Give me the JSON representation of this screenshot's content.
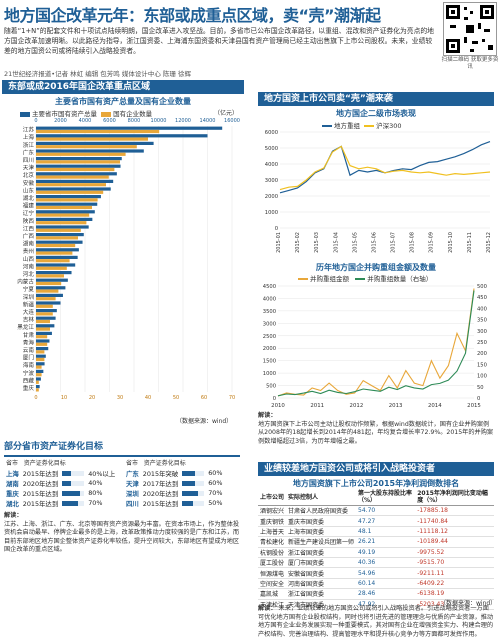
{
  "header": {
    "title": "地方国企改革元年：东部或成重点区域，卖“壳”潮渐起",
    "lead": "随着“1+N”的配套文件和十项试点陆续明朗，国企改革进入攻坚战。目前，多省市已公布国企改革路径，以重组、混改和资产证券化为亮点的地方国企改革加速明晰。以此路径为指导，浙江国资委、上海浦东国资委和天津县国有资产管理局已经主动出售旗下上市公司股权。未来，业绩较差的地方国资公司或将陆续引入战略投资者。",
    "byline": "21世纪经济报道•记者 林虹 编辑 包芳鸣 媒体设计中心 陈珊 徐辉",
    "qr_caption": "扫描二维码 获取更多资讯"
  },
  "left_panel": {
    "section_title": "东部或成2016年国企改革重点区域",
    "chart_title": "主要省市国有资产总量及国有企业数量",
    "unit": "（亿元）",
    "source": "（数据来源：wind）"
  },
  "chart_data": [
    {
      "type": "bar",
      "title": "主要省市国有资产总量及国有企业数量",
      "series": [
        {
          "name": "主要省市国有资产总量",
          "color": "#1f5f96"
        },
        {
          "name": "国有企业数量",
          "color": "#e8a73a"
        }
      ],
      "categories": [
        "江苏",
        "上海",
        "浙江",
        "广东",
        "四川",
        "天津",
        "北京",
        "安徽",
        "山东",
        "湖北",
        "福建",
        "辽宁",
        "陕西",
        "江西",
        "广西",
        "湖南",
        "贵州",
        "山西",
        "河南",
        "河北",
        "内蒙古",
        "宁夏",
        "深圳",
        "新疆",
        "大连",
        "吉林",
        "黑龙江",
        "甘肃",
        "青海",
        "云南",
        "厦门",
        "海南",
        "宁波",
        "西藏",
        "重庆"
      ],
      "values_total": [
        15200,
        14000,
        9600,
        8800,
        7000,
        6900,
        6600,
        6300,
        6100,
        5300,
        5000,
        4800,
        4600,
        4300,
        3900,
        3800,
        3500,
        3400,
        3200,
        2900,
        2600,
        2400,
        2200,
        2000,
        1700,
        1600,
        1500,
        1300,
        1100,
        1000,
        800,
        700,
        600,
        400,
        300
      ],
      "values_count": [
        44,
        40,
        36,
        32,
        30,
        28,
        26,
        25,
        24,
        22,
        20,
        19,
        18,
        16,
        15,
        14,
        13,
        12,
        11,
        10,
        9,
        8,
        7,
        6,
        6,
        5,
        5,
        4,
        4,
        3,
        3,
        2,
        2,
        1,
        1
      ],
      "xticks_total": [
        "0",
        "2000",
        "4000",
        "6000",
        "8000",
        "10000",
        "12000",
        "14000",
        "16000"
      ],
      "xticks_count": [
        "0",
        "10",
        "20",
        "30",
        "40",
        "50",
        "60",
        "70"
      ]
    },
    {
      "type": "line",
      "title": "地方国企二级市场表现",
      "series": [
        {
          "name": "地方重组",
          "color": "#1f5f96",
          "values": [
            2200,
            2350,
            2500,
            2900,
            3450,
            3700,
            4800,
            5100,
            3300,
            3600,
            3500,
            3600,
            3450,
            3600,
            3700,
            3650,
            3900,
            4100,
            4150,
            4300,
            4450,
            4650,
            4900,
            5200,
            5400
          ]
        },
        {
          "name": "沪深300",
          "color": "#f0c020",
          "values": [
            2400,
            2550,
            2600,
            3000,
            3500,
            3750,
            4750,
            5100,
            3900,
            3700,
            3800,
            3700,
            3450,
            3550,
            3600,
            3500,
            3450,
            3500,
            3400,
            3300,
            3400,
            3350,
            3400,
            3450,
            3500
          ]
        }
      ],
      "xticks": [
        "2015-01",
        "2015-02",
        "2015-03",
        "2015-04",
        "2015-05",
        "2015-06",
        "2015-07",
        "2015-08",
        "2015-09",
        "2015-10",
        "2015-11",
        "2015-12"
      ],
      "yticks": [
        "0",
        "1000",
        "2000",
        "3000",
        "4000",
        "5000",
        "6000"
      ]
    },
    {
      "type": "line",
      "title": "历年地方国企并购重组金额及数量",
      "series": [
        {
          "name": "并购重组金额",
          "color": "#e8a73a"
        },
        {
          "name": "并购重组数量（右轴）",
          "color": "#2e8b57"
        }
      ],
      "years": [
        "2010",
        "2011",
        "2012",
        "2013",
        "2014",
        "2015"
      ],
      "amount": [
        80,
        200,
        150,
        120,
        400,
        300,
        600,
        300,
        150,
        200,
        700,
        500,
        300,
        900,
        400,
        1100,
        600,
        500,
        1500,
        800,
        1300,
        2600,
        1900,
        4400
      ],
      "count": [
        10,
        18,
        15,
        22,
        30,
        20,
        35,
        25,
        20,
        28,
        40,
        35,
        30,
        48,
        38,
        55,
        45,
        40,
        60,
        65,
        80,
        120,
        200,
        480
      ],
      "yticks_left": [
        "0",
        "500",
        "1000",
        "1500",
        "2000",
        "2500",
        "3000",
        "3500",
        "4000",
        "4500"
      ],
      "yticks_right": [
        "0",
        "50",
        "100",
        "150",
        "200",
        "250",
        "300",
        "350",
        "400",
        "450",
        "500"
      ]
    }
  ],
  "right_panel": {
    "section_title": "地方国资上市公司卖“壳”潮来袭",
    "chart2_title": "地方国企二级市场表现",
    "chart3_title": "历年地方国企并购重组金额及数量",
    "note_label": "解读：",
    "note": "地方国资旗下上市公司主动让股权动作频繁，根据wind数据统计，国有企业并购案例从2008年的18起增长到2014年的481起，年均复合增长率72.9%。2015年的并购案例数增幅超过3倍，为历年增幅之最。"
  },
  "targets": {
    "section_title": "部分省市资产证券化目标",
    "left_header": [
      "省市",
      "资产证券化目标"
    ],
    "right_header": [
      "省市",
      "资产证券化目标"
    ],
    "rows_left": [
      {
        "city": "上海",
        "year": "2015年达到",
        "pct": "40%以上",
        "fill": 0.4
      },
      {
        "city": "湖南",
        "year": "2020年达到",
        "pct": "40%",
        "fill": 0.4
      },
      {
        "city": "重庆",
        "year": "2015年达到",
        "pct": "80%",
        "fill": 0.8
      },
      {
        "city": "湖北",
        "year": "2015年达到",
        "pct": "70%",
        "fill": 0.7
      }
    ],
    "rows_right": [
      {
        "city": "广东",
        "year": "2015年突破",
        "pct": "60%",
        "fill": 0.6
      },
      {
        "city": "天津",
        "year": "2017年达到",
        "pct": "60%",
        "fill": 0.6
      },
      {
        "city": "深圳",
        "year": "2020年达到",
        "pct": "70%",
        "fill": 0.7
      },
      {
        "city": "四川",
        "year": "2015年达到",
        "pct": "50%",
        "fill": 0.5
      }
    ],
    "note_label": "解读：",
    "note": "江苏、上海、浙江、广东、北京等国有资产资源最为丰富。在资本市场上，作为整体投资机会启动最早、停牌企业最多的是上海，改革政策推动力度较强的是广东和江苏，而目前东部地区地方国企整体资产证券化率较低，提升空间较大，东部地区有望成为地区国企改革的重点区域。"
  },
  "ranking": {
    "section_title": "业绩较差地方国资公司或将引入战略投资者",
    "subtitle": "地方国资旗下上市公司2015年净利润倒数排名",
    "headers": [
      "上市公司",
      "实际控制人",
      "第一大股东持股比率（%）",
      "2015年净利润同比变动幅度（%）"
    ],
    "rows": [
      [
        "酒钢宏兴",
        "甘肃省人民政府国资委",
        "54.70",
        "-17885.18"
      ],
      [
        "重庆钢铁",
        "重庆市国资委",
        "47.27",
        "-11740.84"
      ],
      [
        "上海普天",
        "上海市国资委",
        "48.1",
        "-11118.12"
      ],
      [
        "青松建化",
        "新疆生产建设兵团第一师",
        "26.21",
        "-10189.44"
      ],
      [
        "杭钢股份",
        "浙江省国资委",
        "49.19",
        "-9975.52"
      ],
      [
        "厦工股份",
        "厦门市国资委",
        "40.36",
        "-9515.70"
      ],
      [
        "恒源煤电",
        "安徽省国资委",
        "54.96",
        "-9211.11"
      ],
      [
        "空间安全",
        "河南省国资委",
        "60.14",
        "-6409.22"
      ],
      [
        "嘉凯城",
        "浙江省国资委",
        "28.46",
        "-6138.19"
      ],
      [
        "天津松江",
        "天津市国资委",
        "47.92",
        "-5203.43"
      ]
    ],
    "source": "（数据来源：wind）",
    "note_label": "解读：",
    "note": "未来，业绩较差的地方国资公司或将引入战略投资者。引进战略投资者一方面可优化地方国有企业股权结构，同时也将引进先进的管理理念与优质的产业资源，推动地方国有企业业务发展实现一种重要模式，其对国有企业在增强资金实力、构建合理的产权结构、完善治理结构、提高管理水平和提升核心竞争力等方面都可发挥作用。"
  }
}
